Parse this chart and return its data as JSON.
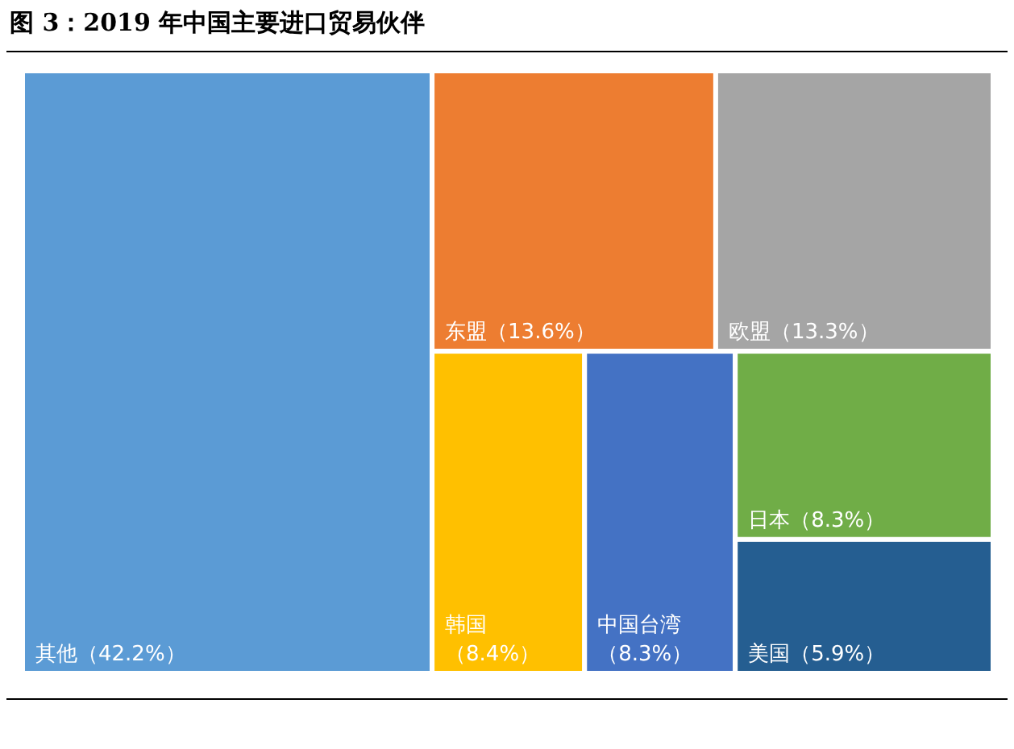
{
  "chart_data": {
    "type": "other",
    "title": "图 3：2019 年中国主要进口贸易伙伴",
    "categories": [
      "其他",
      "东盟",
      "欧盟",
      "韩国",
      "中国台湾",
      "日本",
      "美国"
    ],
    "values": [
      42.2,
      13.6,
      13.3,
      8.4,
      8.3,
      8.3,
      5.9
    ],
    "value_labels": [
      "（42.2%）",
      "（13.6%）",
      "（13.3%）",
      "（8.4%）",
      "（8.3%）",
      "（8.3%）",
      "（5.9%）"
    ],
    "colors": [
      "#5b9bd5",
      "#ed7d31",
      "#a5a5a5",
      "#ffc000",
      "#4472c4",
      "#70ad47",
      "#255e91"
    ],
    "data_labels": true
  }
}
